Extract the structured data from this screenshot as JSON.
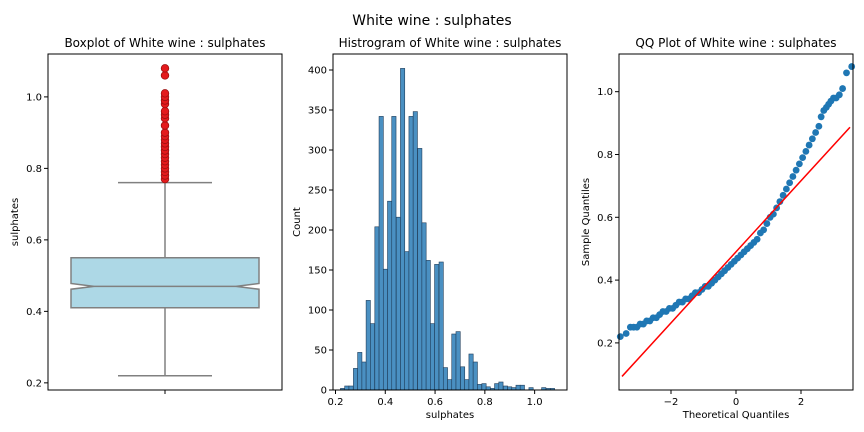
{
  "figure": {
    "suptitle": "White wine : sulphates"
  },
  "chart_data": [
    {
      "type": "box",
      "title": "Boxplot of White wine : sulphates",
      "xlabel": "",
      "ylabel": "sulphates",
      "ylim": [
        0.18,
        1.12
      ],
      "yticks": [
        0.2,
        0.4,
        0.6,
        0.8,
        1.0
      ],
      "box": {
        "whisker_low": 0.22,
        "q1": 0.41,
        "median": 0.47,
        "q3": 0.55,
        "whisker_high": 0.76,
        "notched": true
      },
      "outliers": [
        0.77,
        0.78,
        0.79,
        0.8,
        0.81,
        0.82,
        0.83,
        0.84,
        0.85,
        0.86,
        0.87,
        0.88,
        0.89,
        0.9,
        0.92,
        0.94,
        0.95,
        0.96,
        0.98,
        0.99,
        1.0,
        1.01,
        1.06,
        1.08
      ],
      "colors": {
        "box_fill": "#add8e6",
        "box_edge": "#808080",
        "outlier_fill": "#e41a1c"
      }
    },
    {
      "type": "bar",
      "title": "Histrogram of White wine : sulphates",
      "xlabel": "sulphates",
      "ylabel": "Count",
      "xlim": [
        0.19,
        1.13
      ],
      "ylim": [
        0,
        420
      ],
      "xticks": [
        0.2,
        0.4,
        0.6,
        0.8,
        1.0
      ],
      "yticks": [
        0,
        50,
        100,
        150,
        200,
        250,
        300,
        350,
        400
      ],
      "bin_width": 0.0172,
      "bins_start": [
        0.22,
        0.237,
        0.254,
        0.272,
        0.289,
        0.306,
        0.323,
        0.34,
        0.358,
        0.375,
        0.392,
        0.409,
        0.426,
        0.444,
        0.461,
        0.478,
        0.495,
        0.512,
        0.53,
        0.547,
        0.564,
        0.581,
        0.598,
        0.616,
        0.633,
        0.65,
        0.667,
        0.684,
        0.702,
        0.719,
        0.736,
        0.753,
        0.77,
        0.788,
        0.805,
        0.822,
        0.839,
        0.856,
        0.874,
        0.891,
        0.908,
        0.925,
        0.942,
        0.96,
        0.977,
        0.994,
        1.011,
        1.028,
        1.046,
        1.063
      ],
      "counts": [
        2,
        5,
        5,
        27,
        47,
        35,
        112,
        83,
        204,
        342,
        151,
        236,
        342,
        216,
        402,
        173,
        342,
        348,
        302,
        209,
        162,
        83,
        157,
        160,
        28,
        13,
        70,
        73,
        29,
        13,
        45,
        35,
        7,
        8,
        4,
        2,
        8,
        10,
        5,
        4,
        3,
        6,
        6,
        0,
        3,
        0,
        0,
        3,
        2,
        2
      ],
      "colors": {
        "bar_fill": "#4a90c2",
        "bar_edge": "#1f3d5a"
      }
    },
    {
      "type": "scatter",
      "title": "QQ Plot of White wine : sulphates",
      "xlabel": "Theoretical Quantiles",
      "ylabel": "Sample Quantiles",
      "xlim": [
        -3.6,
        3.6
      ],
      "ylim": [
        0.05,
        1.12
      ],
      "xticks": [
        -2,
        0,
        2
      ],
      "yticks": [
        0.2,
        0.4,
        0.6,
        0.8,
        1.0
      ],
      "reference_line": {
        "x": [
          -3.6,
          3.6
        ],
        "y": [
          0.09,
          0.89
        ]
      },
      "points": [
        [
          -3.56,
          0.22
        ],
        [
          -3.38,
          0.23
        ],
        [
          -3.25,
          0.25
        ],
        [
          -3.15,
          0.25
        ],
        [
          -3.05,
          0.25
        ],
        [
          -2.95,
          0.26
        ],
        [
          -2.85,
          0.26
        ],
        [
          -2.75,
          0.27
        ],
        [
          -2.65,
          0.27
        ],
        [
          -2.55,
          0.28
        ],
        [
          -2.45,
          0.28
        ],
        [
          -2.35,
          0.29
        ],
        [
          -2.25,
          0.3
        ],
        [
          -2.15,
          0.3
        ],
        [
          -2.05,
          0.31
        ],
        [
          -1.95,
          0.31
        ],
        [
          -1.85,
          0.32
        ],
        [
          -1.75,
          0.33
        ],
        [
          -1.65,
          0.33
        ],
        [
          -1.55,
          0.34
        ],
        [
          -1.45,
          0.34
        ],
        [
          -1.35,
          0.35
        ],
        [
          -1.25,
          0.36
        ],
        [
          -1.15,
          0.36
        ],
        [
          -1.05,
          0.37
        ],
        [
          -0.95,
          0.38
        ],
        [
          -0.85,
          0.38
        ],
        [
          -0.75,
          0.39
        ],
        [
          -0.65,
          0.4
        ],
        [
          -0.55,
          0.41
        ],
        [
          -0.45,
          0.42
        ],
        [
          -0.35,
          0.43
        ],
        [
          -0.25,
          0.44
        ],
        [
          -0.15,
          0.45
        ],
        [
          -0.05,
          0.46
        ],
        [
          0.05,
          0.47
        ],
        [
          0.15,
          0.48
        ],
        [
          0.25,
          0.49
        ],
        [
          0.35,
          0.5
        ],
        [
          0.45,
          0.51
        ],
        [
          0.55,
          0.52
        ],
        [
          0.65,
          0.53
        ],
        [
          0.75,
          0.55
        ],
        [
          0.85,
          0.56
        ],
        [
          0.95,
          0.58
        ],
        [
          1.05,
          0.6
        ],
        [
          1.15,
          0.61
        ],
        [
          1.25,
          0.63
        ],
        [
          1.35,
          0.65
        ],
        [
          1.45,
          0.67
        ],
        [
          1.55,
          0.69
        ],
        [
          1.65,
          0.71
        ],
        [
          1.75,
          0.73
        ],
        [
          1.85,
          0.75
        ],
        [
          1.95,
          0.77
        ],
        [
          2.05,
          0.79
        ],
        [
          2.15,
          0.81
        ],
        [
          2.25,
          0.83
        ],
        [
          2.35,
          0.85
        ],
        [
          2.45,
          0.87
        ],
        [
          2.55,
          0.89
        ],
        [
          2.62,
          0.92
        ],
        [
          2.7,
          0.94
        ],
        [
          2.78,
          0.95
        ],
        [
          2.85,
          0.96
        ],
        [
          2.92,
          0.97
        ],
        [
          3.0,
          0.98
        ],
        [
          3.08,
          0.98
        ],
        [
          3.18,
          0.99
        ],
        [
          3.28,
          1.01
        ],
        [
          3.4,
          1.06
        ],
        [
          3.56,
          1.08
        ]
      ],
      "colors": {
        "point_fill": "#1f77b4",
        "line": "#ff0000"
      }
    }
  ]
}
